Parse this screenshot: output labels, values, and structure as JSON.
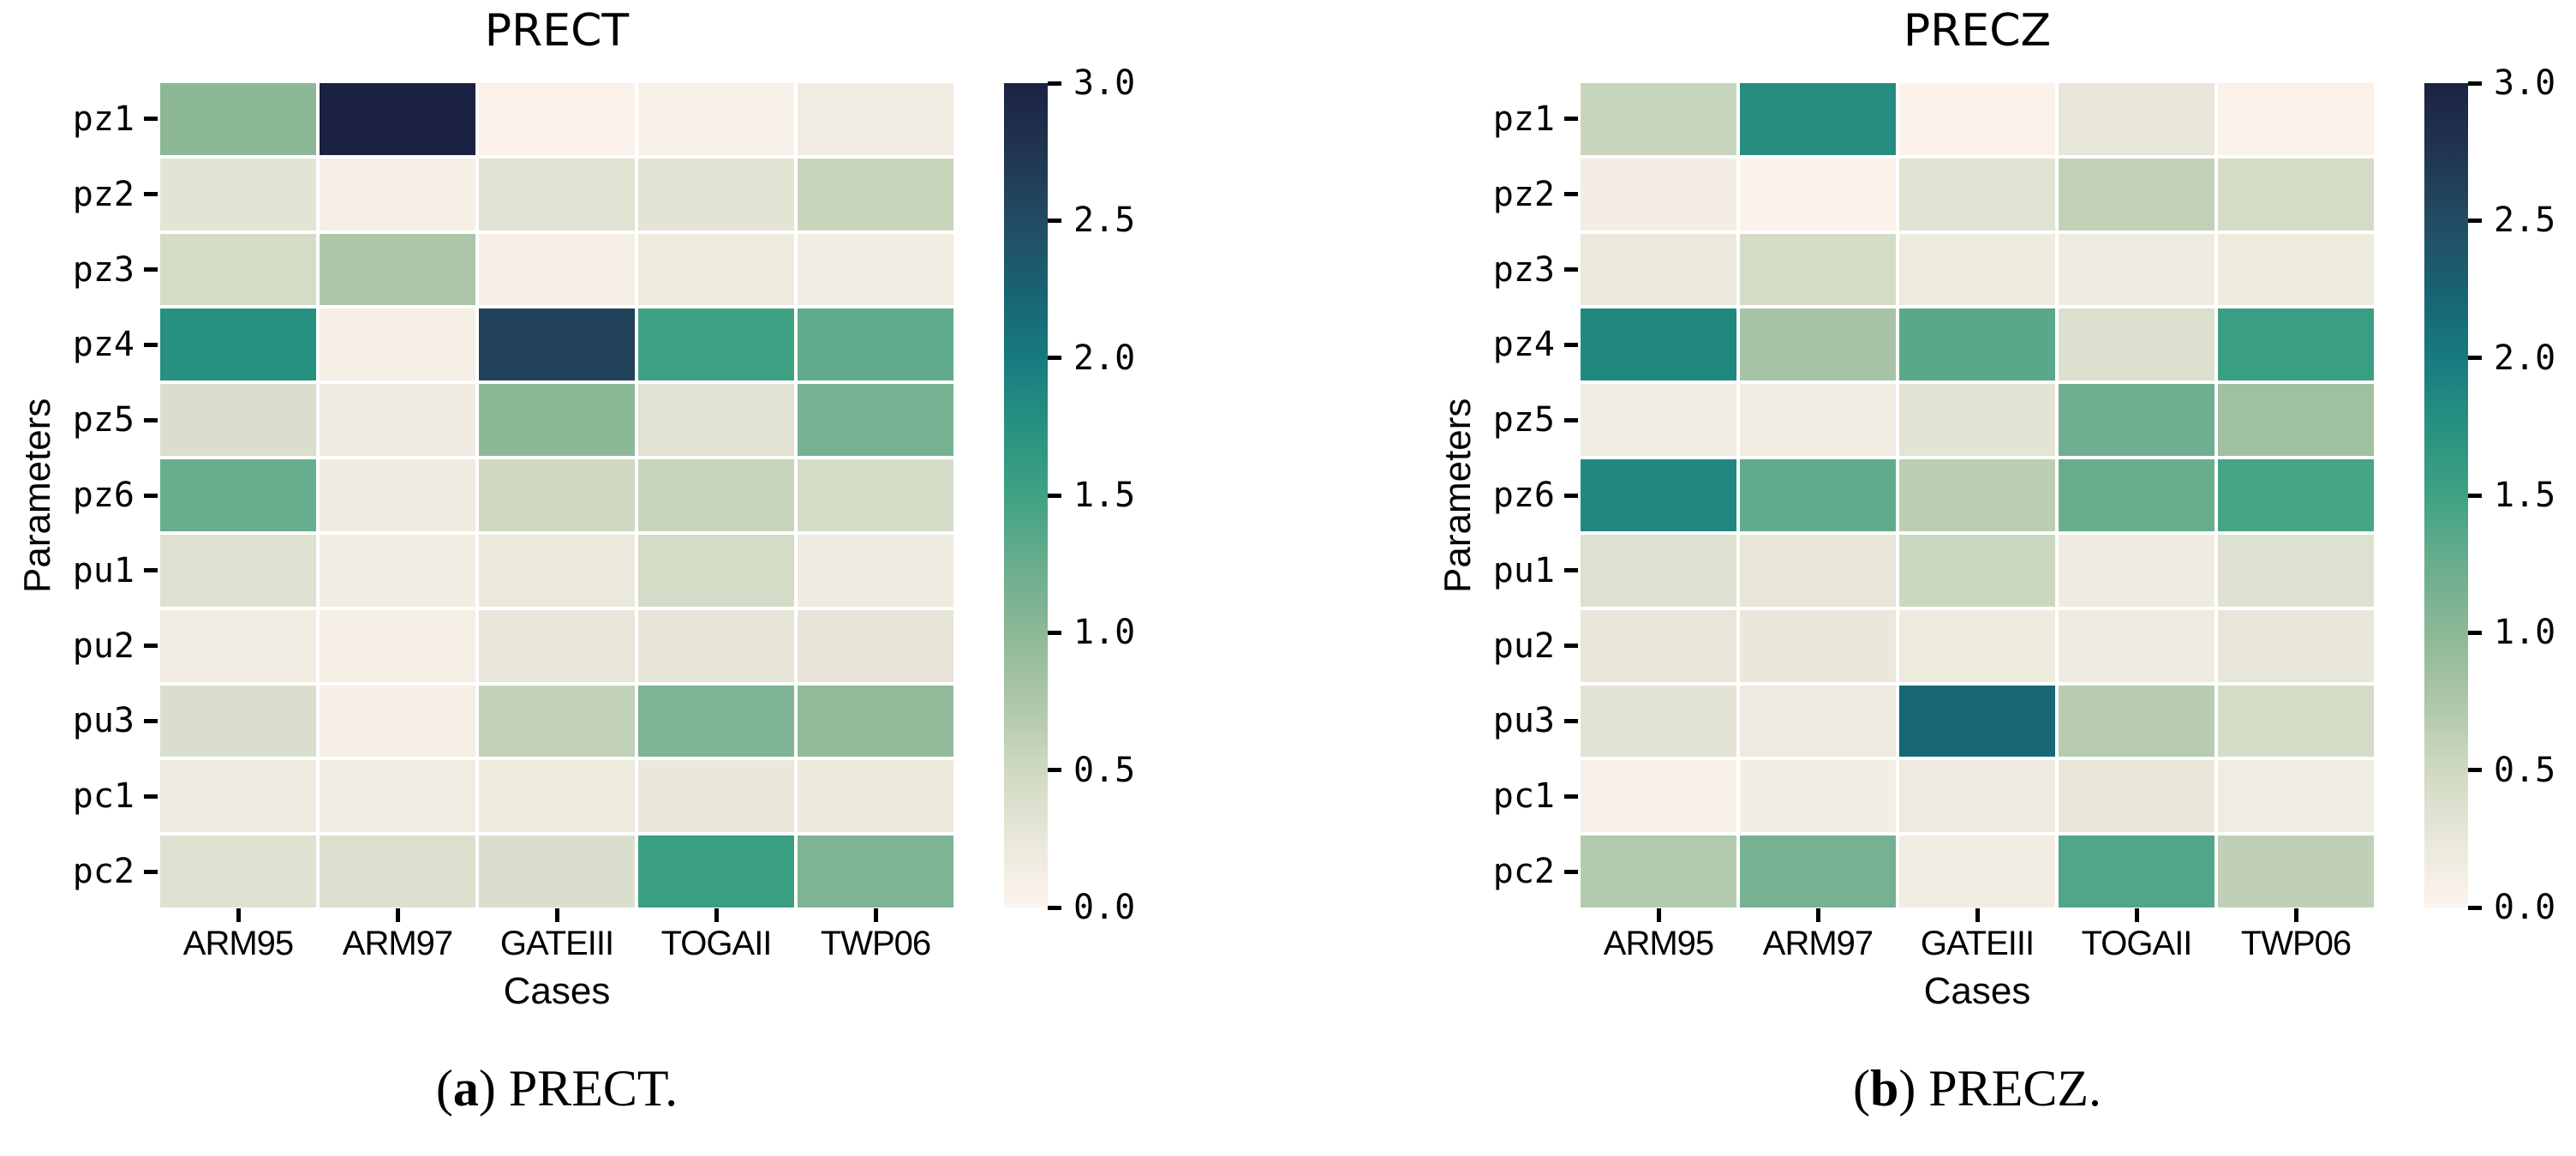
{
  "chart_data": [
    {
      "type": "heatmap",
      "title": "PRECT",
      "xlabel": "Cases",
      "ylabel": "Parameters",
      "caption_marker": "a",
      "caption_label": "PRECT.",
      "x_categories": [
        "ARM95",
        "ARM97",
        "GATEIII",
        "TOGAII",
        "TWP06"
      ],
      "y_categories": [
        "pz1",
        "pz2",
        "pz3",
        "pz4",
        "pz5",
        "pz6",
        "pu1",
        "pu2",
        "pu3",
        "pc1",
        "pc2"
      ],
      "values": [
        [
          1.0,
          3.0,
          0.05,
          0.06,
          0.15
        ],
        [
          0.3,
          0.1,
          0.33,
          0.3,
          0.55
        ],
        [
          0.45,
          0.75,
          0.1,
          0.2,
          0.16
        ],
        [
          1.75,
          0.1,
          2.6,
          1.5,
          1.3
        ],
        [
          0.4,
          0.18,
          1.0,
          0.33,
          1.15
        ],
        [
          1.25,
          0.18,
          0.5,
          0.55,
          0.45
        ],
        [
          0.35,
          0.14,
          0.22,
          0.45,
          0.18
        ],
        [
          0.16,
          0.11,
          0.26,
          0.28,
          0.28
        ],
        [
          0.4,
          0.11,
          0.6,
          1.1,
          0.95
        ],
        [
          0.18,
          0.16,
          0.2,
          0.24,
          0.23
        ],
        [
          0.36,
          0.38,
          0.4,
          1.55,
          1.1
        ]
      ],
      "colorbar": {
        "min": 0.0,
        "max": 3.0,
        "tick_labels": [
          "0.0",
          "0.5",
          "1.0",
          "1.5",
          "2.0",
          "2.5",
          "3.0"
        ]
      },
      "grid": false,
      "legend_position": "right-colorbar"
    },
    {
      "type": "heatmap",
      "title": "PRECZ",
      "xlabel": "Cases",
      "ylabel": "Parameters",
      "caption_marker": "b",
      "caption_label": "PRECZ.",
      "x_categories": [
        "ARM95",
        "ARM97",
        "GATEIII",
        "TOGAII",
        "TWP06"
      ],
      "y_categories": [
        "pz1",
        "pz2",
        "pz3",
        "pz4",
        "pz5",
        "pz6",
        "pu1",
        "pu2",
        "pu3",
        "pc1",
        "pc2"
      ],
      "values": [
        [
          0.55,
          1.8,
          0.04,
          0.26,
          0.05
        ],
        [
          0.13,
          0.04,
          0.32,
          0.6,
          0.45
        ],
        [
          0.23,
          0.45,
          0.2,
          0.18,
          0.2
        ],
        [
          1.85,
          0.8,
          1.35,
          0.38,
          1.55
        ],
        [
          0.15,
          0.14,
          0.3,
          1.2,
          0.85
        ],
        [
          1.85,
          1.3,
          0.65,
          1.25,
          1.45
        ],
        [
          0.36,
          0.26,
          0.52,
          0.17,
          0.35
        ],
        [
          0.27,
          0.24,
          0.2,
          0.18,
          0.27
        ],
        [
          0.32,
          0.19,
          2.2,
          0.68,
          0.45
        ],
        [
          0.08,
          0.12,
          0.19,
          0.25,
          0.16
        ],
        [
          0.7,
          1.15,
          0.14,
          1.4,
          0.62
        ]
      ],
      "colorbar": {
        "min": 0.0,
        "max": 3.0,
        "tick_labels": [
          "0.0",
          "0.5",
          "1.0",
          "1.5",
          "2.0",
          "2.5",
          "3.0"
        ]
      },
      "grid": false,
      "legend_position": "right-colorbar"
    }
  ],
  "colormap": {
    "stops": [
      {
        "v": 0.0,
        "c": "#fdf4ee"
      },
      {
        "v": 0.25,
        "c": "#e9e7da"
      },
      {
        "v": 0.5,
        "c": "#cfd9c2"
      },
      {
        "v": 0.75,
        "c": "#adc6aa"
      },
      {
        "v": 1.0,
        "c": "#8cb897"
      },
      {
        "v": 1.25,
        "c": "#68ad8d"
      },
      {
        "v": 1.5,
        "c": "#3fa184"
      },
      {
        "v": 1.75,
        "c": "#27927f"
      },
      {
        "v": 2.0,
        "c": "#177a80"
      },
      {
        "v": 2.25,
        "c": "#186273"
      },
      {
        "v": 2.5,
        "c": "#234b64"
      },
      {
        "v": 2.75,
        "c": "#203550"
      },
      {
        "v": 3.0,
        "c": "#1c2244"
      }
    ]
  },
  "text_color": "#000000",
  "background_color": "#ffffff"
}
